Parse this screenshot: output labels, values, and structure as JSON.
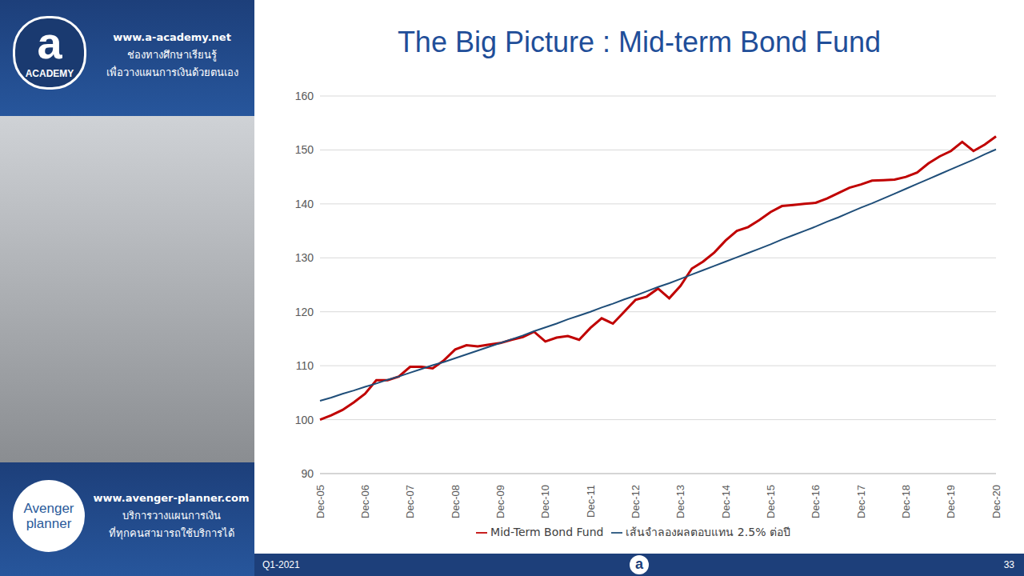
{
  "chart_data": {
    "type": "line",
    "title": "The Big Picture : Mid-term Bond Fund",
    "categories": [
      "Dec-05",
      null,
      null,
      null,
      "Dec-06",
      null,
      null,
      null,
      "Dec-07",
      null,
      null,
      null,
      "Dec-08",
      null,
      null,
      null,
      "Dec-09",
      null,
      null,
      null,
      "Dec-10",
      null,
      null,
      null,
      "Dec-11",
      null,
      null,
      null,
      "Dec-12",
      null,
      null,
      null,
      "Dec-13",
      null,
      null,
      null,
      "Dec-14",
      null,
      null,
      null,
      "Dec-15",
      null,
      null,
      null,
      "Dec-16",
      null,
      null,
      null,
      "Dec-17",
      null,
      null,
      null,
      "Dec-18",
      null,
      null,
      null,
      "Dec-19",
      null,
      null,
      null,
      "Dec-20"
    ],
    "series": [
      {
        "name": "Mid-Term Bond Fund",
        "color": "#c00000",
        "line_style": "solid",
        "values": [
          100,
          100.8,
          101.8,
          103.2,
          104.8,
          107.3,
          107.3,
          108.0,
          109.8,
          109.8,
          109.5,
          111.0,
          113.0,
          113.8,
          113.6,
          113.9,
          114.2,
          114.8,
          115.3,
          116.3,
          114.5,
          115.2,
          115.5,
          114.8,
          117.0,
          118.8,
          117.8,
          120.0,
          122.2,
          122.8,
          124.3,
          122.5,
          124.8,
          128.0,
          129.3,
          131.0,
          133.2,
          135.0,
          135.7,
          137.0,
          138.5,
          139.6,
          139.8,
          140.0,
          140.2,
          141.0,
          142.0,
          143.0,
          143.6,
          144.3,
          144.4,
          144.5,
          145.0,
          145.8,
          147.5,
          148.8,
          149.8,
          151.5,
          149.8,
          151.0,
          152.5
        ]
      },
      {
        "name": "เส้นจำลองผลตอบแทน 2.5% ต่อปี",
        "color": "#1f4e79",
        "line_style": "solid",
        "values": [
          103.5,
          104.1,
          104.8,
          105.4,
          106.1,
          106.7,
          107.4,
          108.0,
          108.7,
          109.4,
          110.1,
          110.7,
          111.4,
          112.1,
          112.8,
          113.5,
          114.2,
          114.9,
          115.6,
          116.4,
          117.1,
          117.8,
          118.6,
          119.3,
          120.0,
          120.8,
          121.5,
          122.3,
          123.0,
          123.8,
          124.6,
          125.3,
          126.1,
          126.9,
          127.7,
          128.5,
          129.3,
          130.1,
          130.9,
          131.7,
          132.5,
          133.4,
          134.2,
          135.0,
          135.8,
          136.7,
          137.5,
          138.4,
          139.3,
          140.1,
          141.0,
          141.9,
          142.8,
          143.7,
          144.6,
          145.5,
          146.4,
          147.3,
          148.2,
          149.2,
          150.1
        ]
      }
    ],
    "ylim": [
      90,
      160
    ],
    "yticks": [
      90,
      100,
      110,
      120,
      130,
      140,
      150,
      160
    ],
    "grid": true,
    "legend": "bottom"
  },
  "page": {
    "top_panel": {
      "logo": "a",
      "logo_caption": "ACADEMY",
      "lines": [
        "www.a-academy.net",
        "ช่องทางศึกษาเรียนรู้",
        "เพื่อวางแผนการเงินด้วยตนเอง"
      ]
    },
    "bottom_panel": {
      "logo_lines": [
        "Avenger",
        "planner"
      ],
      "lines": [
        "www.avenger-planner.com",
        "บริการวางแผนการเงิน",
        "ที่ทุกคนสามารถใช้บริการได้"
      ]
    },
    "footer": {
      "left": "Q1-2021",
      "center_logo": "a",
      "right": "33"
    }
  }
}
